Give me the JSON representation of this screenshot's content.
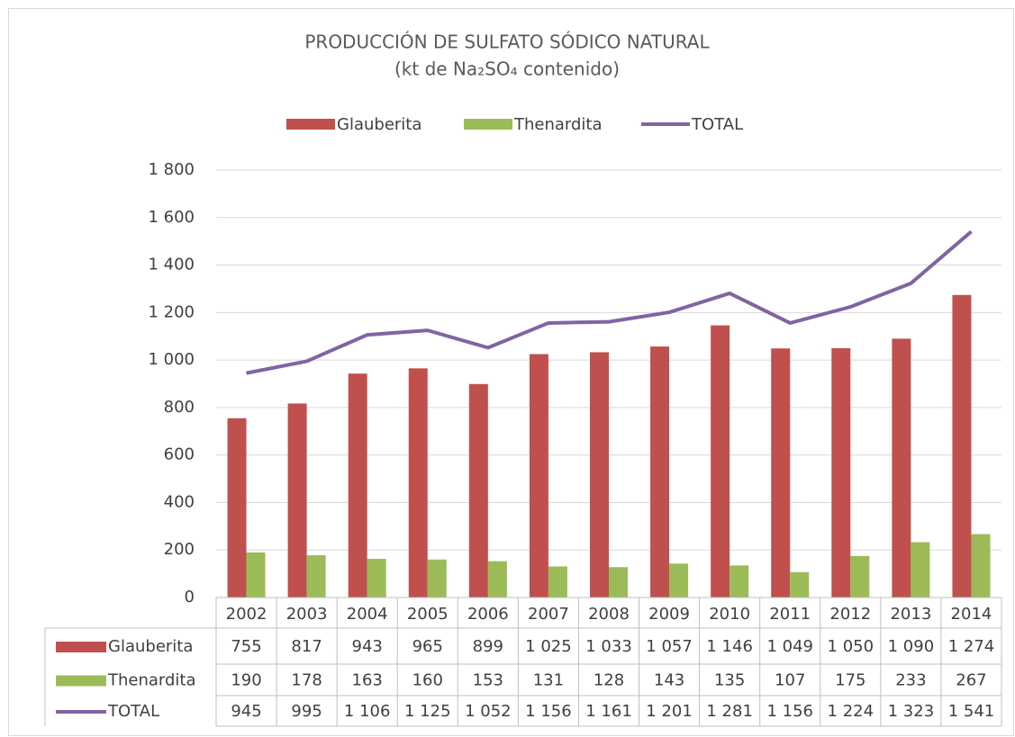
{
  "chart_data": {
    "type": "bar",
    "title": "PRODUCCIÓN DE SULFATO SÓDICO NATURAL",
    "subtitle": "(kt de Na₂SO₄ contenido)",
    "categories": [
      "2002",
      "2003",
      "2004",
      "2005",
      "2006",
      "2007",
      "2008",
      "2009",
      "2010",
      "2011",
      "2012",
      "2013",
      "2014"
    ],
    "series": [
      {
        "name": "Glauberita",
        "type": "bar",
        "color": "#c0504d",
        "values": [
          755,
          817,
          943,
          965,
          899,
          1025,
          1033,
          1057,
          1146,
          1049,
          1050,
          1090,
          1274
        ],
        "value_labels": [
          "755",
          "817",
          "943",
          "965",
          "899",
          "1 025",
          "1 033",
          "1 057",
          "1 146",
          "1 049",
          "1 050",
          "1 090",
          "1 274"
        ]
      },
      {
        "name": "Thenardita",
        "type": "bar",
        "color": "#9bbb59",
        "values": [
          190,
          178,
          163,
          160,
          153,
          131,
          128,
          143,
          135,
          107,
          175,
          233,
          267
        ],
        "value_labels": [
          "190",
          "178",
          "163",
          "160",
          "153",
          "131",
          "128",
          "143",
          "135",
          "107",
          "175",
          "233",
          "267"
        ]
      },
      {
        "name": "TOTAL",
        "type": "line",
        "color": "#8064a2",
        "values": [
          945,
          995,
          1106,
          1125,
          1052,
          1156,
          1161,
          1201,
          1281,
          1156,
          1224,
          1323,
          1541
        ],
        "value_labels": [
          "945",
          "995",
          "1 106",
          "1 125",
          "1 052",
          "1 156",
          "1 161",
          "1 201",
          "1 281",
          "1 156",
          "1 224",
          "1 323",
          "1 541"
        ]
      }
    ],
    "ylim": [
      0,
      1800
    ],
    "yticks": [
      0,
      200,
      400,
      600,
      800,
      {
        "value": 1000,
        "label": "1 000"
      },
      {
        "value": 1200,
        "label": "1 200"
      },
      {
        "value": 1400,
        "label": "1 400"
      },
      {
        "value": 1600,
        "label": "1 600"
      },
      {
        "value": 1800,
        "label": "1 800"
      }
    ],
    "grid": true,
    "legend": "top",
    "data_table": true
  }
}
